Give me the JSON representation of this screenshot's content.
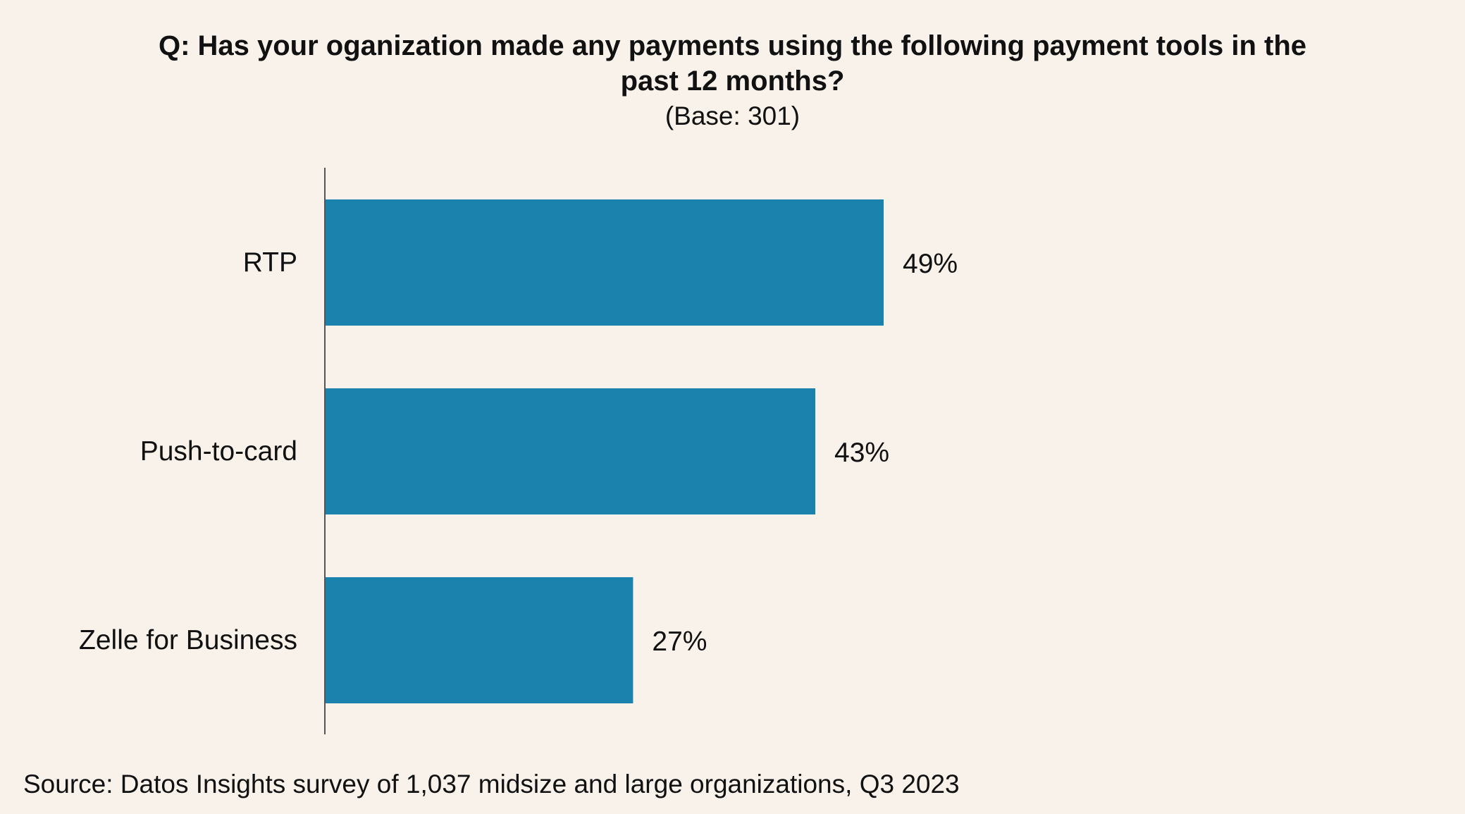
{
  "page": {
    "title": "Q: Has your oganization made any payments using the following payment tools in the past 12 months?",
    "subtitle": "(Base: 301)",
    "source": "Source: Datos Insights survey of 1,037 midsize and large organizations, Q3 2023"
  },
  "colors": {
    "background": "#f8f2eb",
    "bar": "#1b82ae",
    "axis": "#555555",
    "text": "#111111"
  },
  "chart_data": {
    "type": "bar",
    "orientation": "horizontal",
    "title": "Q: Has your oganization made any payments using the following payment tools in the past 12 months?",
    "subtitle": "(Base: 301)",
    "categories": [
      "RTP",
      "Push-to-card",
      "Zelle for Business"
    ],
    "values": [
      49,
      43,
      27
    ],
    "value_labels": [
      "49%",
      "43%",
      "27%"
    ],
    "unit": "%",
    "xlim": [
      0,
      100
    ],
    "grid": false,
    "legend": "none"
  }
}
